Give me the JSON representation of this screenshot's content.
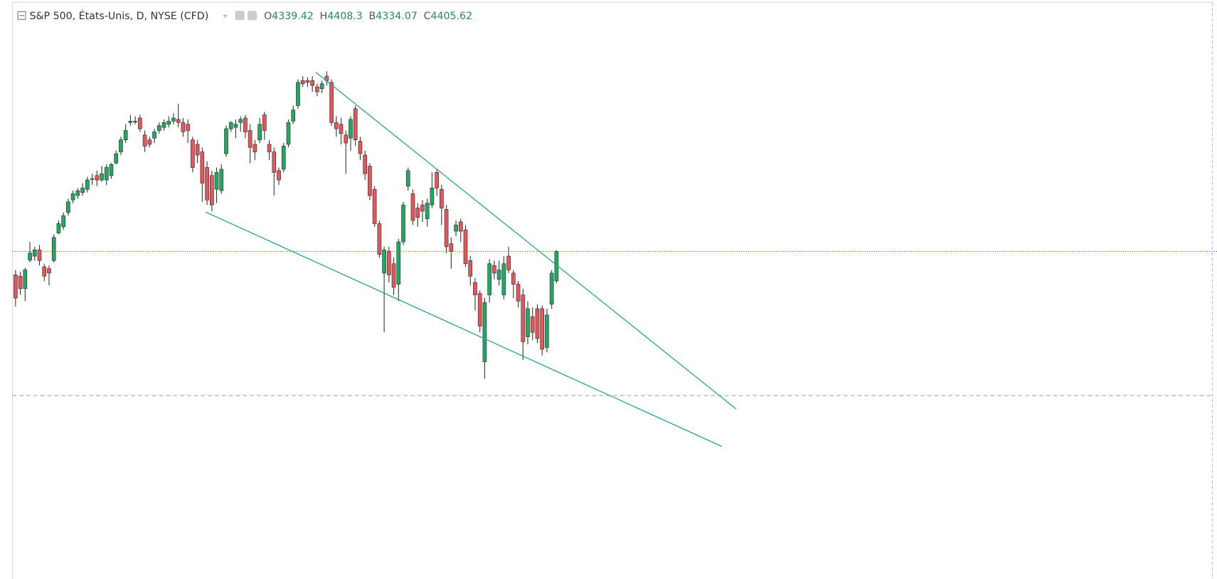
{
  "chart_data": {
    "type": "candlestick",
    "title": "S&P 500, États-Unis, D, NYSE (CFD)",
    "ohlc_labels": [
      "O",
      "H",
      "B",
      "C"
    ],
    "open": [
      4353,
      4350,
      4322,
      4386,
      4395,
      4409,
      4371,
      4367,
      4385,
      4447,
      4461,
      4493,
      4521,
      4531,
      4538,
      4545,
      4569,
      4576,
      4566,
      4566,
      4576,
      4604,
      4629,
      4656,
      4695,
      4698,
      4705,
      4667,
      4656,
      4660,
      4677,
      4684,
      4691,
      4698,
      4702,
      4695,
      4691,
      4656,
      4646,
      4629,
      4594,
      4576,
      4545,
      4542,
      4625,
      4681,
      4684,
      4695,
      4705,
      4677,
      4646,
      4656,
      4712,
      4646,
      4629,
      4587,
      4590,
      4646,
      4698,
      4733,
      4789,
      4789,
      4789,
      4775,
      4771,
      4799,
      4785,
      4695,
      4691,
      4667,
      4660,
      4726,
      4653,
      4622,
      4597,
      4545,
      4468,
      4357,
      4406,
      4378,
      4332,
      4427,
      4552,
      4535,
      4503,
      4510,
      4479,
      4510,
      4583,
      4545,
      4500,
      4423,
      4451,
      4472,
      4454,
      4385,
      4336,
      4311,
      4158,
      4308,
      4374,
      4343,
      4308,
      4395,
      4357,
      4332,
      4308,
      4214,
      4259,
      4277,
      4277,
      4190,
      4287,
      4339.42
    ],
    "high": [
      4364,
      4360,
      4369,
      4427,
      4416,
      4420,
      4378,
      4374,
      4444,
      4475,
      4493,
      4524,
      4542,
      4548,
      4559,
      4573,
      4580,
      4587,
      4597,
      4601,
      4604,
      4632,
      4663,
      4691,
      4712,
      4709,
      4712,
      4677,
      4663,
      4681,
      4695,
      4702,
      4709,
      4716,
      4737,
      4705,
      4702,
      4663,
      4656,
      4639,
      4608,
      4587,
      4594,
      4601,
      4688,
      4698,
      4702,
      4709,
      4712,
      4691,
      4656,
      4705,
      4719,
      4656,
      4639,
      4594,
      4649,
      4702,
      4733,
      4792,
      4799,
      4796,
      4799,
      4782,
      4789,
      4810,
      4792,
      4709,
      4705,
      4677,
      4709,
      4733,
      4663,
      4632,
      4604,
      4552,
      4475,
      4416,
      4416,
      4392,
      4434,
      4517,
      4594,
      4545,
      4514,
      4521,
      4524,
      4583,
      4590,
      4555,
      4510,
      4437,
      4475,
      4479,
      4465,
      4395,
      4346,
      4318,
      4301,
      4388,
      4385,
      4385,
      4395,
      4416,
      4364,
      4339,
      4322,
      4294,
      4280,
      4287,
      4284,
      4277,
      4364,
      4408.3
    ],
    "low": [
      4282,
      4308,
      4294,
      4381,
      4385,
      4374,
      4339,
      4329,
      4381,
      4444,
      4454,
      4486,
      4514,
      4524,
      4531,
      4538,
      4555,
      4552,
      4562,
      4555,
      4569,
      4601,
      4622,
      4649,
      4688,
      4691,
      4674,
      4629,
      4639,
      4649,
      4670,
      4677,
      4684,
      4691,
      4684,
      4663,
      4649,
      4583,
      4604,
      4517,
      4510,
      4496,
      4514,
      4535,
      4618,
      4674,
      4660,
      4674,
      4660,
      4604,
      4611,
      4649,
      4656,
      4611,
      4531,
      4555,
      4583,
      4639,
      4691,
      4726,
      4775,
      4775,
      4764,
      4754,
      4761,
      4778,
      4688,
      4663,
      4646,
      4580,
      4632,
      4642,
      4611,
      4566,
      4521,
      4461,
      4392,
      4224,
      4336,
      4308,
      4294,
      4420,
      4542,
      4465,
      4461,
      4472,
      4461,
      4503,
      4531,
      4465,
      4402,
      4367,
      4440,
      4427,
      4371,
      4329,
      4273,
      4224,
      4120,
      4291,
      4343,
      4329,
      4298,
      4357,
      4301,
      4280,
      4162,
      4197,
      4207,
      4200,
      4172,
      4179,
      4277,
      4334.07
    ],
    "close": [
      4301,
      4322,
      4364,
      4402,
      4409,
      4385,
      4350,
      4357,
      4437,
      4468,
      4486,
      4517,
      4535,
      4542,
      4548,
      4566,
      4569,
      4566,
      4580,
      4594,
      4601,
      4625,
      4656,
      4677,
      4698,
      4698,
      4681,
      4642,
      4646,
      4674,
      4688,
      4695,
      4698,
      4705,
      4695,
      4674,
      4677,
      4594,
      4622,
      4559,
      4521,
      4510,
      4583,
      4590,
      4681,
      4695,
      4691,
      4702,
      4674,
      4639,
      4629,
      4691,
      4677,
      4629,
      4583,
      4566,
      4642,
      4695,
      4723,
      4785,
      4782,
      4785,
      4778,
      4764,
      4782,
      4789,
      4695,
      4681,
      4670,
      4649,
      4702,
      4656,
      4625,
      4580,
      4531,
      4468,
      4399,
      4409,
      4353,
      4325,
      4427,
      4510,
      4587,
      4475,
      4482,
      4496,
      4514,
      4548,
      4548,
      4503,
      4416,
      4406,
      4465,
      4451,
      4378,
      4350,
      4308,
      4238,
      4291,
      4378,
      4357,
      4364,
      4378,
      4364,
      4332,
      4294,
      4203,
      4277,
      4224,
      4210,
      4186,
      4263,
      4357,
      4405.62
    ],
    "up_color": "#22a862",
    "down_color": "#e3565c",
    "xlim": [
      -0.65,
      250
    ],
    "ylim": [
      3672,
      4970
    ],
    "trendlines": [
      {
        "x": [
          62.7,
          150.5
        ],
        "y": [
          4808,
          4052
        ]
      },
      {
        "x": [
          39.7,
          147.5
        ],
        "y": [
          4494,
          3968
        ]
      }
    ],
    "trendline_color": "#2ca58d",
    "last_price_line_color": "#3a57e8",
    "hlines": [
      {
        "value": 4082,
        "color": "#9a9a9a"
      }
    ]
  }
}
